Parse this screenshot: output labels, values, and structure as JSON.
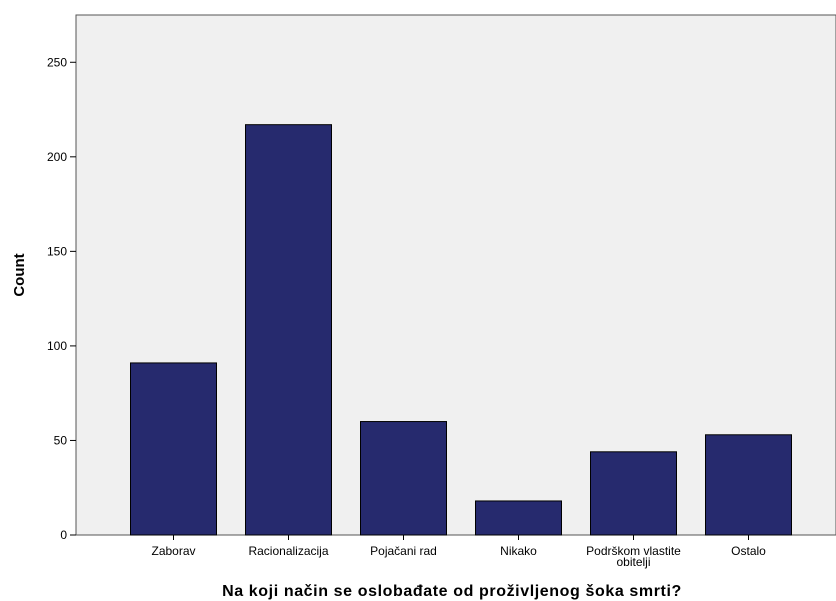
{
  "chart_data": {
    "type": "bar",
    "categories": [
      "Zaborav",
      "Racionalizacija",
      "Pojačani rad",
      "Nikako",
      "Podrškom vlastite obitelji",
      "Ostalo"
    ],
    "category_label_lines": [
      [
        "Zaborav"
      ],
      [
        "Racionalizacija"
      ],
      [
        "Pojačani rad"
      ],
      [
        "Nikako"
      ],
      [
        "Podrškom vlastite",
        "obitelji"
      ],
      [
        "Ostalo"
      ]
    ],
    "values": [
      91,
      217,
      60,
      18,
      44,
      53
    ],
    "xlabel": "Na koji način se oslobađate od proživljenog šoka smrti?",
    "ylabel": "Count",
    "ylim": [
      0,
      275
    ],
    "yticks": [
      0,
      50,
      100,
      150,
      200,
      250
    ],
    "grid": false,
    "colors": {
      "bar_fill": "#262a6e",
      "bar_stroke": "#000000",
      "plot_background": "#f0f0f0"
    }
  }
}
